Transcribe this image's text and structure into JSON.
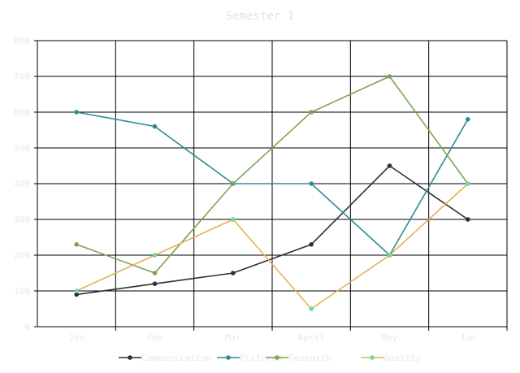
{
  "chart_data": {
    "type": "line",
    "title": "Semester 1",
    "categories": [
      "Jan",
      "Feb",
      "Mar",
      "April",
      "May",
      "Jun"
    ],
    "y_ticks": [
      "0",
      "100",
      "200",
      "300",
      "400",
      "500",
      "600",
      "700",
      "800"
    ],
    "ylim": [
      0,
      800
    ],
    "grid": true,
    "legend_position": "bottom",
    "series": [
      {
        "name": "Communication",
        "color": "#2d3039",
        "values": [
          90,
          120,
          150,
          230,
          450,
          300
        ]
      },
      {
        "name": "Pictures",
        "color": "#2e8b92",
        "values": [
          600,
          560,
          400,
          400,
          200,
          580
        ]
      },
      {
        "name": "Research",
        "color": "#7da451",
        "values": [
          230,
          150,
          400,
          600,
          700,
          400
        ]
      },
      {
        "name": "Quality",
        "color": "#e2b256",
        "values": [
          100,
          200,
          300,
          50,
          200,
          400
        ]
      }
    ],
    "quality_marker_color": "#6fd6a0"
  }
}
